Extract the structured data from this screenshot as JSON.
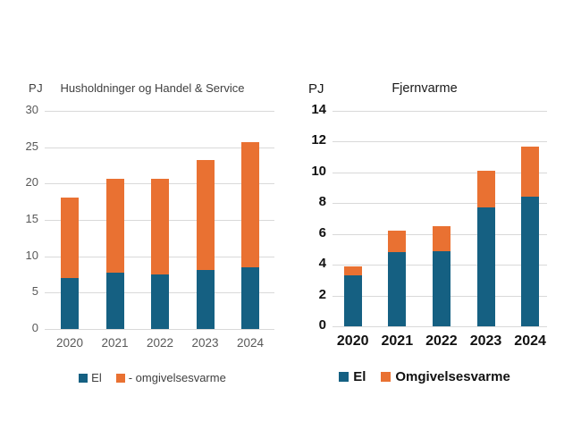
{
  "colors": {
    "el": "#156082",
    "omgivelsesvarme": "#E97132",
    "gridline": "#d9d9d9",
    "left_chart_text": "#595959",
    "right_chart_text": "#111111"
  },
  "chart_data": [
    {
      "type": "bar",
      "stacked": true,
      "title": "Husholdninger og Handel & Service",
      "ylabel": "PJ",
      "xlabel": "",
      "categories": [
        "2020",
        "2021",
        "2022",
        "2023",
        "2024"
      ],
      "series": [
        {
          "name": "El",
          "color": "#156082",
          "values": [
            7.0,
            7.8,
            7.5,
            8.1,
            8.5
          ]
        },
        {
          "name": "- omgivelsesvarme",
          "color": "#E97132",
          "values": [
            11.1,
            12.9,
            13.2,
            15.2,
            17.2
          ]
        }
      ],
      "totals": [
        18.1,
        20.7,
        20.7,
        23.3,
        25.7
      ],
      "ylim": [
        0,
        30
      ],
      "yticks": [
        0,
        5,
        10,
        15,
        20,
        25,
        30
      ],
      "grid": true,
      "legend_position": "bottom"
    },
    {
      "type": "bar",
      "stacked": true,
      "title": "Fjernvarme",
      "ylabel": "PJ",
      "xlabel": "",
      "categories": [
        "2020",
        "2021",
        "2022",
        "2023",
        "2024"
      ],
      "series": [
        {
          "name": "El",
          "color": "#156082",
          "values": [
            3.3,
            4.8,
            4.9,
            7.7,
            8.4
          ]
        },
        {
          "name": "Omgivelsesvarme",
          "color": "#E97132",
          "values": [
            0.6,
            1.4,
            1.6,
            2.4,
            3.3
          ]
        }
      ],
      "totals": [
        3.9,
        6.2,
        6.5,
        10.1,
        11.7
      ],
      "ylim": [
        0,
        14
      ],
      "yticks": [
        0,
        2,
        4,
        6,
        8,
        10,
        12,
        14
      ],
      "grid": true,
      "legend_position": "bottom"
    }
  ]
}
